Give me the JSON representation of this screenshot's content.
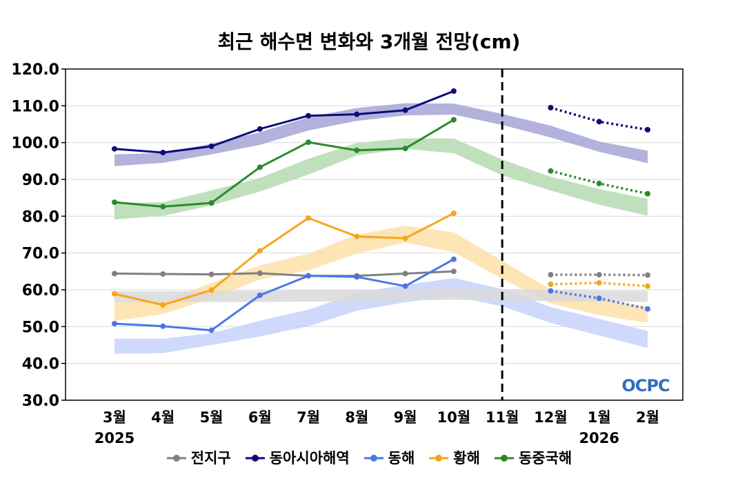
{
  "chart_data": {
    "type": "line",
    "title": "최근 해수면 변화와 3개월 전망(cm)",
    "categories": [
      "3월",
      "4월",
      "5월",
      "6월",
      "7월",
      "8월",
      "9월",
      "10월",
      "11월",
      "12월",
      "1월",
      "2월"
    ],
    "year_labels": [
      {
        "category": "3월",
        "label": "2025"
      },
      {
        "category": "1월",
        "label": "2026"
      }
    ],
    "ylim": [
      30,
      120
    ],
    "yticks": [
      "30.0",
      "40.0",
      "50.0",
      "60.0",
      "70.0",
      "80.0",
      "90.0",
      "100.0",
      "110.0",
      "120.0"
    ],
    "grid": true,
    "forecast_divider": "11월",
    "legend_position": "bottom",
    "series": [
      {
        "name": "전지구",
        "color": "#808080",
        "band_color": "#d9d9d9",
        "observed": [
          64.4,
          64.3,
          64.2,
          64.5,
          63.8,
          63.8,
          64.4,
          65.0,
          null,
          null,
          null,
          null
        ],
        "forecast": [
          null,
          null,
          null,
          null,
          null,
          null,
          null,
          null,
          null,
          64.1,
          64.1,
          64.0
        ],
        "range_low": [
          56.6,
          56.6,
          56.7,
          56.7,
          56.8,
          56.9,
          57.1,
          57.3,
          57.1,
          56.9,
          56.8,
          56.7
        ],
        "range_high": [
          59.6,
          59.6,
          59.7,
          59.8,
          59.9,
          60.0,
          60.2,
          60.4,
          60.2,
          60.0,
          59.8,
          59.7
        ]
      },
      {
        "name": "동아시아해역",
        "color": "#0b0b7a",
        "band_color": "#a4a4d6",
        "observed": [
          98.3,
          97.3,
          99.0,
          103.7,
          107.3,
          107.7,
          108.8,
          114.0,
          null,
          null,
          null,
          null
        ],
        "forecast": [
          null,
          null,
          null,
          null,
          null,
          null,
          null,
          null,
          null,
          109.5,
          105.7,
          103.5
        ],
        "range_low": [
          93.6,
          94.5,
          96.8,
          99.4,
          103.3,
          105.9,
          107.4,
          107.6,
          104.8,
          101.4,
          97.5,
          94.4
        ],
        "range_high": [
          96.8,
          97.2,
          99.7,
          102.8,
          106.9,
          109.4,
          110.7,
          110.6,
          107.8,
          104.6,
          100.3,
          97.8
        ]
      },
      {
        "name": "동해",
        "color": "#4a76e8",
        "band_color": "#c6d2fb",
        "observed": [
          50.8,
          50.1,
          49.0,
          58.5,
          63.8,
          63.5,
          61.0,
          68.3,
          null,
          null,
          null,
          null
        ],
        "forecast": [
          null,
          null,
          null,
          null,
          null,
          null,
          null,
          null,
          null,
          59.7,
          57.7,
          54.8
        ],
        "range_low": [
          42.6,
          42.8,
          45.0,
          47.3,
          50.1,
          54.3,
          56.6,
          58.3,
          55.5,
          51.0,
          47.6,
          44.2
        ],
        "range_high": [
          46.7,
          46.7,
          48.2,
          51.6,
          54.6,
          59.2,
          61.3,
          63.2,
          60.2,
          55.3,
          52.1,
          48.8
        ]
      },
      {
        "name": "황해",
        "color": "#f7a51b",
        "band_color": "#fde1a8",
        "observed": [
          58.9,
          55.9,
          59.9,
          70.6,
          79.5,
          74.5,
          74.0,
          80.8,
          null,
          null,
          null,
          null
        ],
        "forecast": [
          null,
          null,
          null,
          null,
          null,
          null,
          null,
          null,
          null,
          61.5,
          61.9,
          61.0
        ],
        "range_low": [
          51.5,
          53.4,
          57.7,
          62.8,
          65.3,
          69.8,
          72.9,
          70.2,
          63.0,
          56.3,
          53.1,
          51.0
        ],
        "range_high": [
          56.7,
          56.8,
          61.9,
          66.6,
          69.8,
          75.0,
          77.4,
          75.6,
          67.9,
          60.0,
          57.4,
          55.5
        ]
      },
      {
        "name": "동중국해",
        "color": "#2a8a2a",
        "band_color": "#b5dbb1",
        "observed": [
          83.8,
          82.6,
          83.6,
          93.3,
          100.1,
          97.9,
          98.4,
          106.2,
          null,
          null,
          null,
          null
        ],
        "forecast": [
          null,
          null,
          null,
          null,
          null,
          null,
          null,
          null,
          null,
          92.3,
          88.9,
          86.1
        ],
        "range_low": [
          79.1,
          80.1,
          82.9,
          86.7,
          91.3,
          96.5,
          98.3,
          97.1,
          91.1,
          87.0,
          83.1,
          80.1
        ],
        "range_high": [
          83.6,
          83.8,
          87.0,
          90.4,
          95.6,
          99.9,
          101.2,
          101.1,
          95.4,
          90.7,
          87.4,
          84.7
        ]
      }
    ]
  },
  "logo": {
    "text": "OCPC",
    "color": "#2f6fbf"
  }
}
